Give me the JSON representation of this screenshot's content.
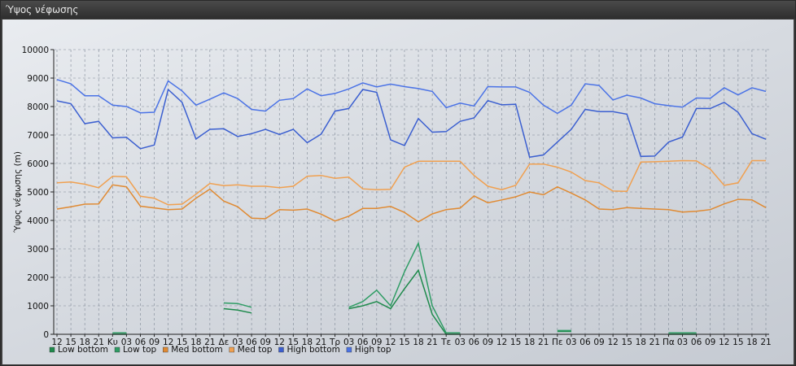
{
  "window": {
    "title": "Ύψος νέφωσης"
  },
  "chart_data": {
    "type": "line",
    "title": "",
    "ylabel": "Ύψος νέφωσης (m)",
    "xlabel": "",
    "ylim": [
      0,
      10000
    ],
    "y_ticks": [
      0,
      1000,
      2000,
      3000,
      4000,
      5000,
      6000,
      7000,
      8000,
      9000,
      10000
    ],
    "grid": true,
    "legend_position": "bottom-left",
    "x": [
      "12",
      "15",
      "18",
      "21",
      "Κυ",
      "03",
      "06",
      "09",
      "12",
      "15",
      "18",
      "21",
      "Δε",
      "03",
      "06",
      "09",
      "12",
      "15",
      "18",
      "21",
      "Τρ",
      "03",
      "06",
      "09",
      "12",
      "15",
      "18",
      "21",
      "Τε",
      "03",
      "06",
      "09",
      "12",
      "15",
      "18",
      "21",
      "Πε",
      "03",
      "06",
      "09",
      "12",
      "15",
      "18",
      "21",
      "Πα",
      "03",
      "06",
      "09",
      "12",
      "15",
      "18",
      "21"
    ],
    "series": [
      {
        "name": "Low bottom",
        "color": "#1f8a4c",
        "values": [
          null,
          null,
          null,
          null,
          0,
          0,
          null,
          null,
          null,
          null,
          null,
          null,
          900,
          850,
          750,
          null,
          null,
          null,
          null,
          null,
          null,
          900,
          1000,
          1150,
          900,
          1600,
          2250,
          700,
          0,
          0,
          null,
          null,
          null,
          null,
          null,
          null,
          100,
          100,
          null,
          null,
          null,
          null,
          null,
          null,
          0,
          0,
          0,
          null,
          null,
          null,
          null,
          null
        ]
      },
      {
        "name": "Low top",
        "color": "#2e9c64",
        "values": [
          null,
          null,
          null,
          null,
          50,
          50,
          null,
          null,
          null,
          null,
          null,
          null,
          1100,
          1080,
          950,
          null,
          null,
          null,
          null,
          null,
          null,
          950,
          1150,
          1550,
          1000,
          2200,
          3200,
          1000,
          50,
          50,
          null,
          null,
          null,
          null,
          null,
          null,
          130,
          130,
          null,
          null,
          null,
          null,
          null,
          null,
          50,
          50,
          50,
          null,
          null,
          null,
          null,
          null
        ]
      },
      {
        "name": "Med bottom",
        "color": "#e08a32",
        "values": [
          4400,
          4480,
          4570,
          4580,
          5250,
          5180,
          4500,
          4440,
          4380,
          4400,
          4780,
          5100,
          4680,
          4480,
          4080,
          4060,
          4380,
          4360,
          4400,
          4220,
          3980,
          4150,
          4420,
          4420,
          4490,
          4280,
          3950,
          4230,
          4380,
          4430,
          4860,
          4620,
          4720,
          4830,
          5000,
          4900,
          5180,
          4960,
          4720,
          4400,
          4380,
          4450,
          4420,
          4400,
          4380,
          4290,
          4320,
          4380,
          4580,
          4740,
          4720,
          4450
        ]
      },
      {
        "name": "Med top",
        "color": "#f0a050",
        "values": [
          5320,
          5350,
          5270,
          5150,
          5550,
          5530,
          4850,
          4780,
          4550,
          4570,
          4920,
          5300,
          5220,
          5250,
          5200,
          5200,
          5150,
          5200,
          5550,
          5580,
          5480,
          5520,
          5110,
          5080,
          5090,
          5870,
          6080,
          6080,
          6080,
          6080,
          5580,
          5200,
          5080,
          5230,
          5980,
          5980,
          5870,
          5700,
          5400,
          5320,
          5030,
          5020,
          6050,
          6060,
          6080,
          6100,
          6090,
          5800,
          5230,
          5320,
          6100,
          6100
        ]
      },
      {
        "name": "High bottom",
        "color": "#3b5fd0",
        "values": [
          8200,
          8100,
          7400,
          7480,
          6900,
          6920,
          6520,
          6650,
          8600,
          8150,
          6860,
          7200,
          7220,
          6950,
          7050,
          7200,
          7020,
          7200,
          6730,
          7030,
          7840,
          7930,
          8600,
          8500,
          6830,
          6630,
          7580,
          7100,
          7120,
          7480,
          7600,
          8210,
          8060,
          8080,
          6220,
          6300,
          6750,
          7200,
          7900,
          7820,
          7820,
          7730,
          6250,
          6260,
          6750,
          6930,
          7930,
          7930,
          8150,
          7800,
          7050,
          6850
        ]
      },
      {
        "name": "High top",
        "color": "#4b73e6",
        "values": [
          8950,
          8800,
          8380,
          8380,
          8050,
          8000,
          7780,
          7800,
          8900,
          8550,
          8050,
          8260,
          8480,
          8280,
          7900,
          7840,
          8220,
          8280,
          8620,
          8380,
          8460,
          8620,
          8830,
          8690,
          8790,
          8700,
          8630,
          8530,
          7960,
          8120,
          8020,
          8700,
          8690,
          8690,
          8500,
          8050,
          7760,
          8050,
          8800,
          8740,
          8230,
          8400,
          8300,
          8100,
          8030,
          7980,
          8300,
          8290,
          8660,
          8410,
          8660,
          8530
        ]
      }
    ]
  }
}
